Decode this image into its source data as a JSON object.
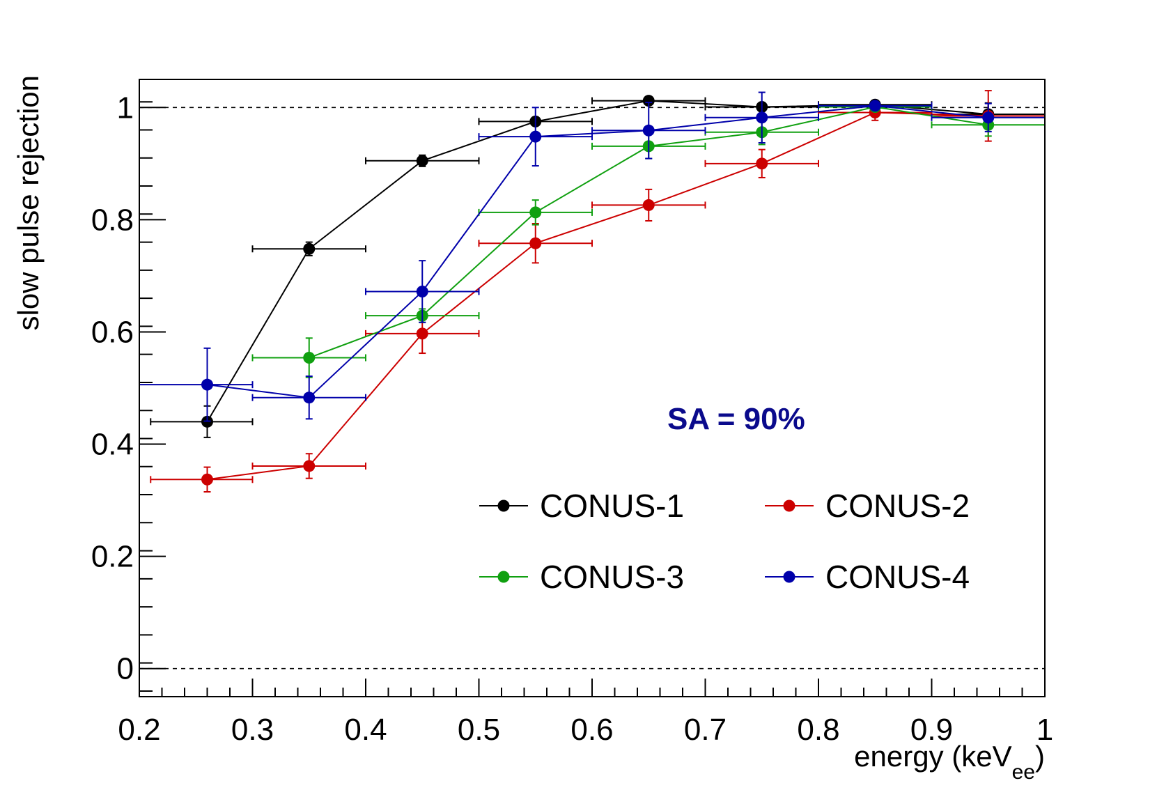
{
  "chart_data": {
    "type": "scatter",
    "title": "",
    "xlabel_main": "energy (keV",
    "xlabel_sub": "ee",
    "xlabel_close": ")",
    "ylabel": "slow pulse rejection",
    "xlim": [
      0.2,
      1.0
    ],
    "ylim": [
      -0.05,
      1.05
    ],
    "x_ticks": [
      {
        "value": 0.2,
        "label": "0.2"
      },
      {
        "value": 0.3,
        "label": "0.3"
      },
      {
        "value": 0.4,
        "label": "0.4"
      },
      {
        "value": 0.5,
        "label": "0.5"
      },
      {
        "value": 0.6,
        "label": "0.6"
      },
      {
        "value": 0.7,
        "label": "0.7"
      },
      {
        "value": 0.8,
        "label": "0.8"
      },
      {
        "value": 0.9,
        "label": "0.9"
      },
      {
        "value": 1.0,
        "label": "1"
      }
    ],
    "y_ticks": [
      {
        "value": 0.0,
        "label": "0"
      },
      {
        "value": 0.2,
        "label": "0.2"
      },
      {
        "value": 0.4,
        "label": "0.4"
      },
      {
        "value": 0.6,
        "label": "0.6"
      },
      {
        "value": 0.8,
        "label": "0.8"
      },
      {
        "value": 1.0,
        "label": "1"
      }
    ],
    "reference_lines": [
      1.0,
      0.0
    ],
    "annotation": "SA = 90%",
    "annotation_color": "#0a0a8c",
    "legend_position": "lower-right",
    "series": [
      {
        "name": "CONUS-1",
        "color": "#000000",
        "points": [
          {
            "x": 0.26,
            "y": 0.44,
            "xlo": 0.21,
            "xhi": 0.3,
            "yerr": 0.028
          },
          {
            "x": 0.35,
            "y": 0.748,
            "xlo": 0.3,
            "xhi": 0.4,
            "yerr": 0.012
          },
          {
            "x": 0.45,
            "y": 0.905,
            "xlo": 0.4,
            "xhi": 0.5,
            "yerr": 0.01
          },
          {
            "x": 0.55,
            "y": 0.975,
            "xlo": 0.5,
            "xhi": 0.6,
            "yerr": 0.006
          },
          {
            "x": 0.65,
            "y": 1.012,
            "xlo": 0.6,
            "xhi": 0.7,
            "yerr": 0.004
          },
          {
            "x": 0.75,
            "y": 1.001,
            "xlo": 0.7,
            "xhi": 0.8,
            "yerr": 0.004
          },
          {
            "x": 0.85,
            "y": 1.005,
            "xlo": 0.8,
            "xhi": 0.9,
            "yerr": 0.004
          },
          {
            "x": 0.95,
            "y": 0.988,
            "xlo": 0.9,
            "xhi": 1.0,
            "yerr": 0.02
          }
        ]
      },
      {
        "name": "CONUS-2",
        "color": "#cc0000",
        "points": [
          {
            "x": 0.26,
            "y": 0.337,
            "xlo": 0.21,
            "xhi": 0.3,
            "yerr": 0.022
          },
          {
            "x": 0.35,
            "y": 0.361,
            "xlo": 0.3,
            "xhi": 0.4,
            "yerr": 0.022
          },
          {
            "x": 0.45,
            "y": 0.597,
            "xlo": 0.4,
            "xhi": 0.5,
            "yerr": 0.035
          },
          {
            "x": 0.55,
            "y": 0.758,
            "xlo": 0.5,
            "xhi": 0.6,
            "yerr": 0.035
          },
          {
            "x": 0.65,
            "y": 0.826,
            "xlo": 0.6,
            "xhi": 0.7,
            "yerr": 0.028
          },
          {
            "x": 0.75,
            "y": 0.9,
            "xlo": 0.7,
            "xhi": 0.8,
            "yerr": 0.025
          },
          {
            "x": 0.85,
            "y": 0.991,
            "xlo": 0.8,
            "xhi": 0.9,
            "yerr": 0.014
          },
          {
            "x": 0.95,
            "y": 0.985,
            "xlo": 0.9,
            "xhi": 1.0,
            "yerr": 0.045
          }
        ]
      },
      {
        "name": "CONUS-3",
        "color": "#10a010",
        "points": [
          {
            "x": 0.35,
            "y": 0.554,
            "xlo": 0.3,
            "xhi": 0.4,
            "yerr": 0.035
          },
          {
            "x": 0.45,
            "y": 0.629,
            "xlo": 0.4,
            "xhi": 0.5,
            "yerr": 0.012
          },
          {
            "x": 0.55,
            "y": 0.813,
            "xlo": 0.5,
            "xhi": 0.6,
            "yerr": 0.022
          },
          {
            "x": 0.65,
            "y": 0.931,
            "xlo": 0.6,
            "xhi": 0.7,
            "yerr": 0.022
          },
          {
            "x": 0.75,
            "y": 0.956,
            "xlo": 0.7,
            "xhi": 0.8,
            "yerr": 0.022
          },
          {
            "x": 0.85,
            "y": 1.001,
            "xlo": 0.8,
            "xhi": 0.9,
            "yerr": 0.006
          },
          {
            "x": 0.95,
            "y": 0.969,
            "xlo": 0.9,
            "xhi": 1.0,
            "yerr": 0.02
          }
        ]
      },
      {
        "name": "CONUS-4",
        "color": "#0000aa",
        "points": [
          {
            "x": 0.26,
            "y": 0.506,
            "xlo": 0.2,
            "xhi": 0.3,
            "yerr": 0.065
          },
          {
            "x": 0.35,
            "y": 0.483,
            "xlo": 0.3,
            "xhi": 0.4,
            "yerr": 0.038
          },
          {
            "x": 0.45,
            "y": 0.672,
            "xlo": 0.4,
            "xhi": 0.5,
            "yerr": 0.055
          },
          {
            "x": 0.55,
            "y": 0.948,
            "xlo": 0.5,
            "xhi": 0.6,
            "yerr": 0.052
          },
          {
            "x": 0.65,
            "y": 0.959,
            "xlo": 0.6,
            "xhi": 0.7,
            "yerr": 0.05
          },
          {
            "x": 0.75,
            "y": 0.982,
            "xlo": 0.7,
            "xhi": 0.8,
            "yerr": 0.045
          },
          {
            "x": 0.85,
            "y": 1.003,
            "xlo": 0.8,
            "xhi": 0.9,
            "yerr": 0.005
          },
          {
            "x": 0.95,
            "y": 0.982,
            "xlo": 0.9,
            "xhi": 1.0,
            "yerr": 0.025
          }
        ]
      }
    ]
  }
}
